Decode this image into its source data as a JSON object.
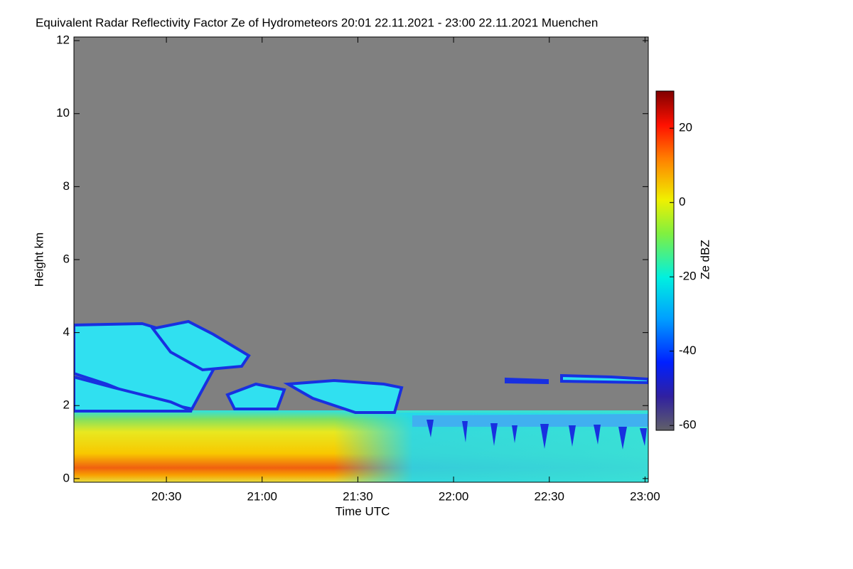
{
  "chart_data": {
    "type": "heatmap",
    "title": "Equivalent Radar Reflectivity Factor Ze of Hydrometeors   20:01 22.11.2021 - 23:00 22.11.2021 Muenchen",
    "x_label": "Time UTC",
    "y_label": "Height km",
    "colorbar_label": "Ze dBZ",
    "xlim": [
      20.017,
      23.017
    ],
    "xticks": [
      {
        "value": 20.5,
        "label": "20:30"
      },
      {
        "value": 21,
        "label": "21:00"
      },
      {
        "value": 21.5,
        "label": "21:30"
      },
      {
        "value": 22,
        "label": "22:00"
      },
      {
        "value": 22.5,
        "label": "22:30"
      },
      {
        "value": 23,
        "label": "23:00"
      }
    ],
    "ylim": [
      -0.1,
      12.1
    ],
    "yticks": [
      0,
      2,
      4,
      6,
      8,
      10,
      12
    ],
    "clim": [
      -61.3,
      30
    ],
    "cticks": [
      20,
      0,
      -20,
      -40,
      -60
    ]
  }
}
